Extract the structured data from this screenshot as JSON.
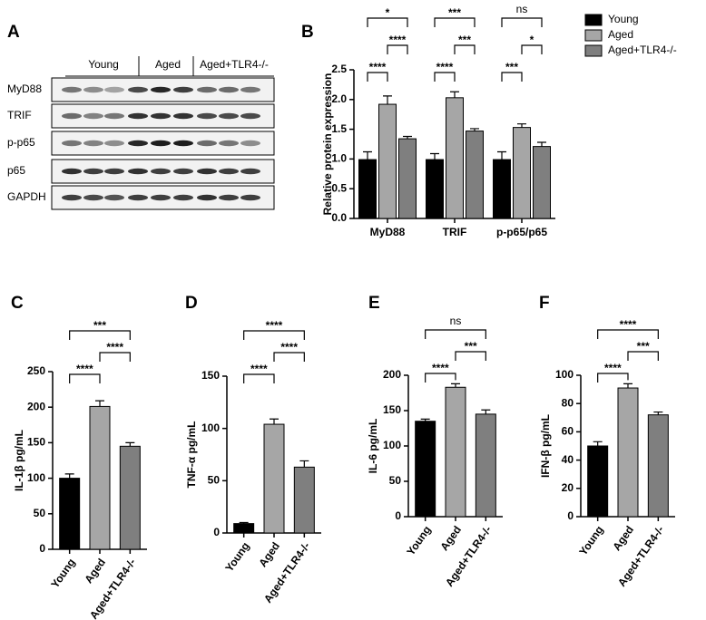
{
  "blot": {
    "panel": "A",
    "groups": [
      "Young",
      "Aged",
      "Aged+TLR4-/-"
    ],
    "rows": [
      "MyD88",
      "TRIF",
      "p-p65",
      "p65",
      "GAPDH"
    ]
  },
  "chart_data": [
    {
      "type": "bar",
      "panel": "B",
      "ylabel": "Relative protein expression",
      "categories": [
        "MyD88",
        "TRIF",
        "p-p65/p65"
      ],
      "series": [
        {
          "name": "Young",
          "color": "#000000",
          "values": [
            0.99,
            0.99,
            0.99
          ],
          "errors": [
            0.13,
            0.1,
            0.13
          ]
        },
        {
          "name": "Aged",
          "color": "#a6a6a6",
          "values": [
            1.92,
            2.03,
            1.53
          ],
          "errors": [
            0.14,
            0.1,
            0.06
          ]
        },
        {
          "name": "Aged+TLR4-/-",
          "color": "#7f7f7f",
          "values": [
            1.34,
            1.47,
            1.21
          ],
          "errors": [
            0.04,
            0.04,
            0.07
          ]
        }
      ],
      "ylim": [
        0,
        2.5
      ],
      "yticks": [
        {
          "value": 0,
          "label": "0.0"
        },
        0.5,
        {
          "value": 1,
          "label": "1.0"
        },
        1.5,
        {
          "value": 2,
          "label": "2.0"
        },
        2.5
      ],
      "comparisons": [
        {
          "category": "MyD88",
          "groups": [
            "Young",
            "Aged"
          ],
          "label": "****"
        },
        {
          "category": "MyD88",
          "groups": [
            "Aged",
            "Aged+TLR4-/-"
          ],
          "label": "****"
        },
        {
          "category": "MyD88",
          "groups": [
            "Young",
            "Aged+TLR4-/-"
          ],
          "label": "*"
        },
        {
          "category": "TRIF",
          "groups": [
            "Young",
            "Aged"
          ],
          "label": "****"
        },
        {
          "category": "TRIF",
          "groups": [
            "Aged",
            "Aged+TLR4-/-"
          ],
          "label": "***"
        },
        {
          "category": "TRIF",
          "groups": [
            "Young",
            "Aged+TLR4-/-"
          ],
          "label": "***"
        },
        {
          "category": "p-p65/p65",
          "groups": [
            "Young",
            "Aged"
          ],
          "label": "***"
        },
        {
          "category": "p-p65/p65",
          "groups": [
            "Aged",
            "Aged+TLR4-/-"
          ],
          "label": "*"
        },
        {
          "category": "p-p65/p65",
          "groups": [
            "Young",
            "Aged+TLR4-/-"
          ],
          "label": "ns"
        }
      ]
    },
    {
      "type": "bar",
      "panel": "C",
      "ylabel": "IL-1β pg/mL",
      "categories": [
        "Young",
        "Aged",
        "Aged+TLR4-/-"
      ],
      "values": [
        100,
        201,
        145
      ],
      "errors": [
        6,
        8,
        5
      ],
      "colors": [
        "#000000",
        "#a6a6a6",
        "#7f7f7f"
      ],
      "ylim": [
        0,
        250
      ],
      "yticks": [
        0,
        50,
        100,
        150,
        200,
        250
      ],
      "comparisons": [
        {
          "groups": [
            "Young",
            "Aged"
          ],
          "label": "****"
        },
        {
          "groups": [
            "Aged",
            "Aged+TLR4-/-"
          ],
          "label": "****"
        },
        {
          "groups": [
            "Young",
            "Aged+TLR4-/-"
          ],
          "label": "***"
        }
      ]
    },
    {
      "type": "bar",
      "panel": "D",
      "ylabel": "TNF-α pg/mL",
      "categories": [
        "Young",
        "Aged",
        "Aged+TLR4-/-"
      ],
      "values": [
        9,
        104,
        63
      ],
      "errors": [
        1,
        5,
        6
      ],
      "colors": [
        "#000000",
        "#a6a6a6",
        "#7f7f7f"
      ],
      "ylim": [
        0,
        150
      ],
      "yticks": [
        0,
        50,
        100,
        150
      ],
      "comparisons": [
        {
          "groups": [
            "Young",
            "Aged"
          ],
          "label": "****"
        },
        {
          "groups": [
            "Aged",
            "Aged+TLR4-/-"
          ],
          "label": "****"
        },
        {
          "groups": [
            "Young",
            "Aged+TLR4-/-"
          ],
          "label": "****"
        }
      ]
    },
    {
      "type": "bar",
      "panel": "E",
      "ylabel": "IL-6 pg/mL",
      "categories": [
        "Young",
        "Aged",
        "Aged+TLR4-/-"
      ],
      "values": [
        135,
        183,
        145
      ],
      "errors": [
        3,
        5,
        6
      ],
      "colors": [
        "#000000",
        "#a6a6a6",
        "#7f7f7f"
      ],
      "ylim": [
        0,
        200
      ],
      "yticks": [
        0,
        50,
        100,
        150,
        200
      ],
      "comparisons": [
        {
          "groups": [
            "Young",
            "Aged"
          ],
          "label": "****"
        },
        {
          "groups": [
            "Aged",
            "Aged+TLR4-/-"
          ],
          "label": "***"
        },
        {
          "groups": [
            "Young",
            "Aged+TLR4-/-"
          ],
          "label": "ns"
        }
      ]
    },
    {
      "type": "bar",
      "panel": "F",
      "ylabel": "IFN-β pg/mL",
      "categories": [
        "Young",
        "Aged",
        "Aged+TLR4-/-"
      ],
      "values": [
        50,
        91,
        72
      ],
      "errors": [
        3,
        3,
        2
      ],
      "colors": [
        "#000000",
        "#a6a6a6",
        "#7f7f7f"
      ],
      "ylim": [
        0,
        100
      ],
      "yticks": [
        0,
        20,
        40,
        60,
        80,
        100
      ],
      "comparisons": [
        {
          "groups": [
            "Young",
            "Aged"
          ],
          "label": "****"
        },
        {
          "groups": [
            "Aged",
            "Aged+TLR4-/-"
          ],
          "label": "***"
        },
        {
          "groups": [
            "Young",
            "Aged+TLR4-/-"
          ],
          "label": "****"
        }
      ]
    }
  ]
}
